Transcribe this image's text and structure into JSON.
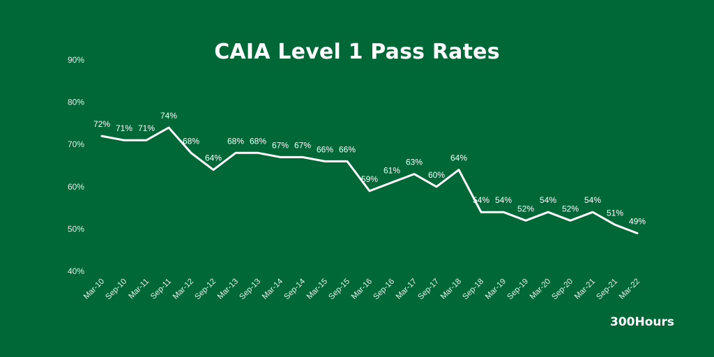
{
  "chart_data": {
    "type": "line",
    "title": "CAIA Level 1 Pass Rates",
    "categories": [
      "Mar-10",
      "Sep-10",
      "Mar-11",
      "Sep-11",
      "Mar-12",
      "Sep-12",
      "Mar-13",
      "Sep-13",
      "Mar-14",
      "Sep-14",
      "Mar-15",
      "Sep-15",
      "Mar-16",
      "Sep-16",
      "Mar-17",
      "Sep-17",
      "Mar-18",
      "Sep-18",
      "Mar-19",
      "Sep-19",
      "Mar-20",
      "Sep-20",
      "Mar-21",
      "Sep-21",
      "Mar-22"
    ],
    "series": [
      {
        "values": [
          72,
          71,
          71,
          74,
          68,
          64,
          68,
          68,
          67,
          67,
          66,
          66,
          59,
          61,
          63,
          60,
          64,
          54,
          54,
          52,
          54,
          52,
          54,
          51,
          49
        ],
        "labels": [
          "72%",
          "71%",
          "71%",
          "74%",
          "68%",
          "64%",
          "68%",
          "68%",
          "67%",
          "67%",
          "66%",
          "66%",
          "59%",
          "61%",
          "63%",
          "60%",
          "64%",
          "54%",
          "54%",
          "52%",
          "54%",
          "52%",
          "54%",
          "51%",
          "49%"
        ],
        "color": "#ffffff"
      }
    ],
    "y_ticks": [
      "40%",
      "50%",
      "60%",
      "70%",
      "80%",
      "90%"
    ],
    "ylim": [
      40,
      90
    ],
    "grid": false,
    "legend": "none"
  },
  "brand": "300Hours",
  "colors": {
    "background": "#006837",
    "line": "#ffffff",
    "text": "#ffffff"
  }
}
